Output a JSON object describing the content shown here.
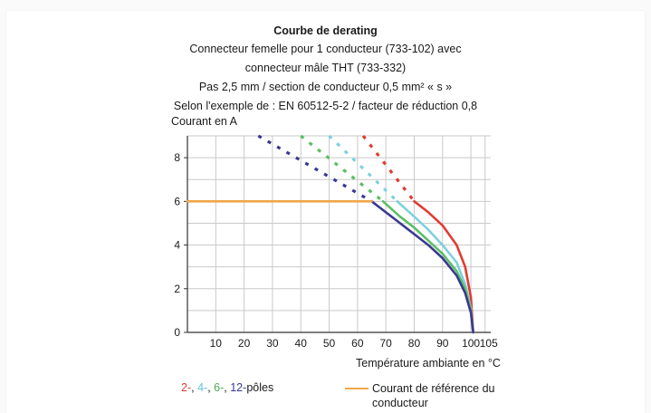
{
  "chart_data": {
    "type": "line",
    "title": "Courbe de derating",
    "subtitle_lines": [
      "Connecteur femelle pour 1 conducteur (733-102) avec",
      "connecteur mâle THT (733-332)",
      "Pas 2,5 mm / section de conducteur 0,5 mm² « s »",
      "Selon l'exemple de : EN 60512-5-2 / facteur de réduction 0,8"
    ],
    "ylabel": "Courant en A",
    "xlabel": "Température ambiante en °C",
    "xlim": [
      0,
      107
    ],
    "ylim": [
      0,
      9
    ],
    "x_ticks": [
      0,
      10,
      20,
      30,
      40,
      50,
      60,
      70,
      80,
      90,
      100,
      105
    ],
    "y_ticks": [
      0,
      2,
      4,
      6,
      8
    ],
    "grid": true,
    "legend_text": {
      "poles_2": "2-",
      "sep1": ", ",
      "poles_4": "4-",
      "sep2": ", ",
      "poles_6": "6-",
      "sep3": ", ",
      "poles_12": "12-",
      "poles_suffix": "pôles",
      "reference": "Courant de référence du conducteur"
    },
    "colors": {
      "poles_2": "#e03c31",
      "poles_4": "#7ed0df",
      "poles_6": "#5bbf66",
      "poles_12": "#3a3891",
      "reference": "#f0a64a"
    },
    "series": [
      {
        "name": "2-",
        "color": "#e03c31",
        "dashed": [
          [
            62,
            9
          ],
          [
            80,
            6
          ]
        ],
        "solid": [
          [
            80,
            6
          ],
          [
            85,
            5.5
          ],
          [
            90,
            4.9
          ],
          [
            95,
            4
          ],
          [
            98,
            3
          ],
          [
            100,
            1.6
          ],
          [
            100.8,
            0
          ]
        ]
      },
      {
        "name": "4-",
        "color": "#7ed0df",
        "dashed": [
          [
            50,
            9
          ],
          [
            74,
            6
          ]
        ],
        "solid": [
          [
            74,
            6
          ],
          [
            80,
            5.3
          ],
          [
            85,
            4.7
          ],
          [
            90,
            4
          ],
          [
            95,
            3.2
          ],
          [
            98,
            2.2
          ],
          [
            100,
            1.1
          ],
          [
            100.8,
            0
          ]
        ]
      },
      {
        "name": "6-",
        "color": "#5bbf66",
        "dashed": [
          [
            40,
            9
          ],
          [
            69,
            6
          ]
        ],
        "solid": [
          [
            69,
            6
          ],
          [
            75,
            5.3
          ],
          [
            80,
            4.8
          ],
          [
            85,
            4.2
          ],
          [
            90,
            3.6
          ],
          [
            95,
            2.8
          ],
          [
            98,
            2
          ],
          [
            100,
            1
          ],
          [
            100.8,
            0
          ]
        ]
      },
      {
        "name": "12-",
        "color": "#3a3891",
        "dashed": [
          [
            25,
            9
          ],
          [
            65,
            6
          ]
        ],
        "solid": [
          [
            65,
            6
          ],
          [
            70,
            5.5
          ],
          [
            75,
            5
          ],
          [
            80,
            4.5
          ],
          [
            85,
            4
          ],
          [
            90,
            3.4
          ],
          [
            95,
            2.6
          ],
          [
            98,
            1.8
          ],
          [
            100,
            0.9
          ],
          [
            100.8,
            0
          ]
        ]
      },
      {
        "name": "Courant de référence du conducteur",
        "color": "#f0a64a",
        "solid": [
          [
            0,
            6
          ],
          [
            65,
            6
          ]
        ]
      }
    ]
  }
}
